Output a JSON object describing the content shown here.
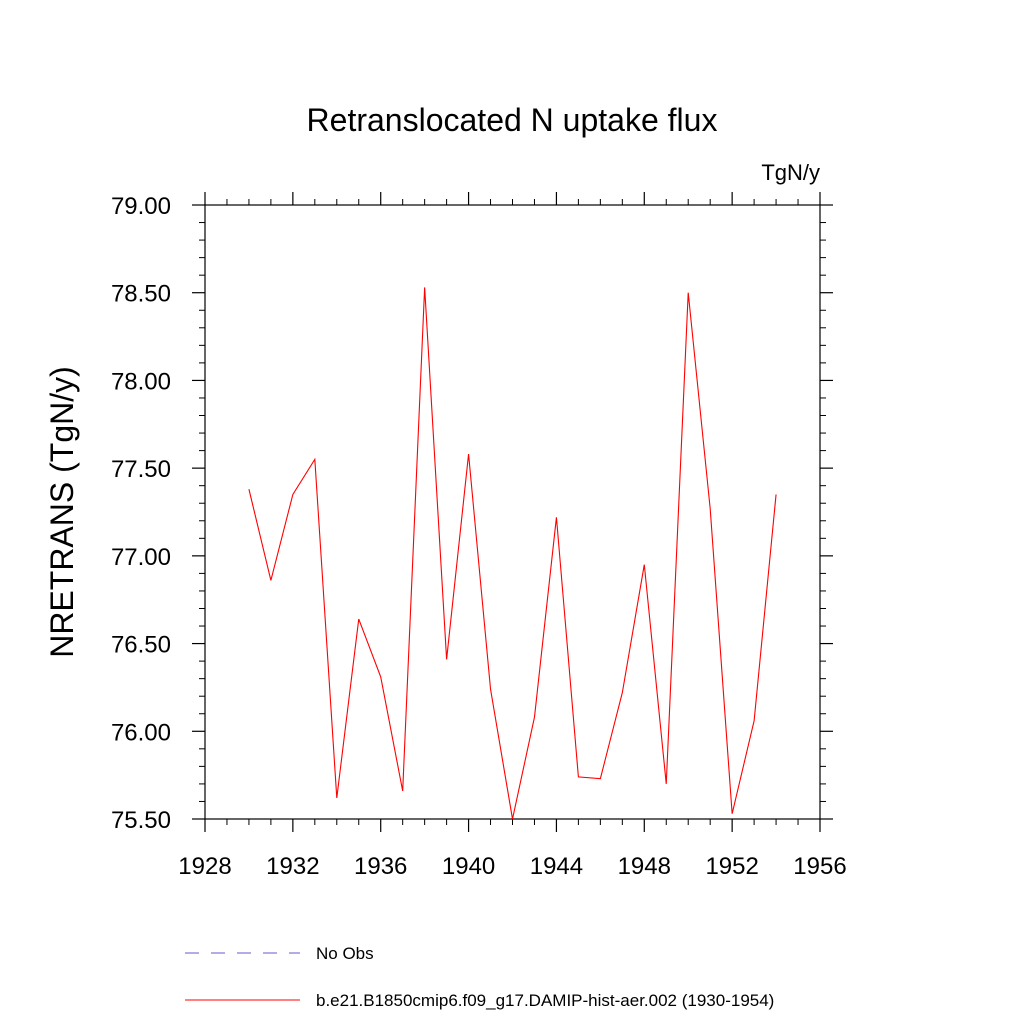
{
  "chart_data": {
    "type": "line",
    "title": "Retranslocated N uptake flux",
    "units_label": "TgN/y",
    "ylabel": "NRETRANS  (TgN/y)",
    "xlabel": "",
    "xlim": [
      1928,
      1956
    ],
    "ylim": [
      75.5,
      79.0
    ],
    "x_ticks": [
      1928,
      1932,
      1936,
      1940,
      1944,
      1948,
      1952,
      1956
    ],
    "x_tick_labels": [
      "1928",
      "1932",
      "1936",
      "1940",
      "1944",
      "1948",
      "1952",
      "1956"
    ],
    "y_ticks": [
      75.5,
      76.0,
      76.5,
      77.0,
      77.5,
      78.0,
      78.5,
      79.0
    ],
    "y_tick_labels": [
      "75.50",
      "76.00",
      "76.50",
      "77.00",
      "77.50",
      "78.00",
      "78.50",
      "79.00"
    ],
    "grid": false,
    "legend_position": "bottom",
    "legend": [
      {
        "label": "No Obs",
        "color": "#6a5acd",
        "dash": true
      },
      {
        "label": "b.e21.B1850cmip6.f09_g17.DAMIP-hist-aer.002 (1930-1954)",
        "color": "#ff0000",
        "dash": false
      }
    ],
    "series": [
      {
        "color": "#ff0000",
        "x": [
          1930,
          1931,
          1932,
          1933,
          1934,
          1935,
          1936,
          1937,
          1938,
          1939,
          1940,
          1941,
          1942,
          1943,
          1944,
          1945,
          1946,
          1947,
          1948,
          1949,
          1950,
          1951,
          1952,
          1953,
          1954
        ],
        "values": [
          77.38,
          76.86,
          77.35,
          77.55,
          75.62,
          76.64,
          76.31,
          75.66,
          78.53,
          76.41,
          77.58,
          76.24,
          75.5,
          76.08,
          77.22,
          75.74,
          75.73,
          76.22,
          76.95,
          75.7,
          78.5,
          77.27,
          75.53,
          76.06,
          77.35
        ]
      }
    ]
  }
}
